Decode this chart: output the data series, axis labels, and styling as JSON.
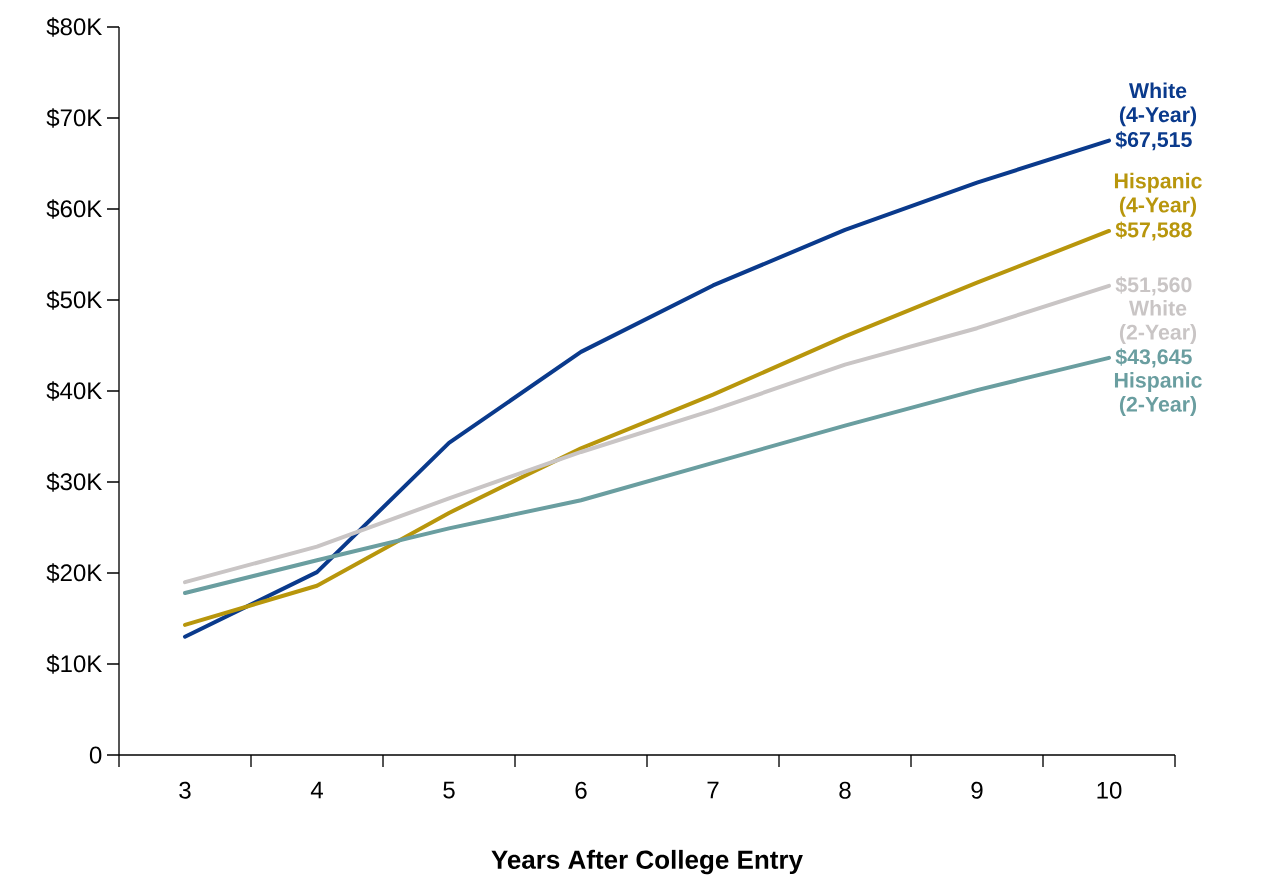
{
  "chart_data": {
    "type": "line",
    "xlabel": "Years After College Entry",
    "categories": [
      "3",
      "4",
      "5",
      "6",
      "7",
      "8",
      "9",
      "10"
    ],
    "ylim": [
      0,
      80000
    ],
    "yticks": [
      0,
      {
        "value": 10000,
        "label": "$10K"
      },
      {
        "value": 20000,
        "label": "$20K"
      },
      {
        "value": 30000,
        "label": "$30K"
      },
      {
        "value": 40000,
        "label": "$40K"
      },
      {
        "value": 50000,
        "label": "$50K"
      },
      {
        "value": 60000,
        "label": "$60K"
      },
      {
        "value": 70000,
        "label": "$70K"
      },
      {
        "value": 80000,
        "label": "$80K"
      }
    ],
    "grid": false,
    "legend": false,
    "marker": "none",
    "line_style": "solid",
    "series": [
      {
        "name": "White (4-Year)",
        "color": "#0a3a8c",
        "values": [
          13000,
          20100,
          34300,
          44300,
          51600,
          57700,
          62900,
          67515
        ],
        "value_labels": [
          null,
          null,
          null,
          null,
          null,
          null,
          null,
          "$67,515"
        ]
      },
      {
        "name": "Hispanic (4-Year)",
        "color": "#b8960c",
        "values": [
          14300,
          18600,
          26600,
          33700,
          39600,
          46000,
          51900,
          57588
        ],
        "value_labels": [
          null,
          null,
          null,
          null,
          null,
          null,
          null,
          "$57,588"
        ]
      },
      {
        "name": "White (2-Year)",
        "color": "#c9c5c5",
        "values": [
          19000,
          22900,
          28200,
          33300,
          37900,
          42900,
          46900,
          51560
        ],
        "value_labels": [
          null,
          null,
          null,
          null,
          null,
          null,
          null,
          "$51,560"
        ]
      },
      {
        "name": "Hispanic (2-Year)",
        "color": "#6a9ea0",
        "values": [
          17800,
          21400,
          24900,
          28000,
          32100,
          36200,
          40100,
          43645
        ],
        "value_labels": [
          null,
          null,
          null,
          null,
          null,
          null,
          null,
          "$43,645"
        ]
      }
    ]
  }
}
